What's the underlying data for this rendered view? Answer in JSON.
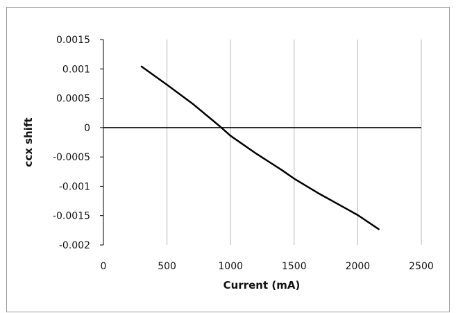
{
  "colors": {
    "gridline": "#b8b8b8",
    "axis": "#000000",
    "series": "#000000",
    "background": "#ffffff"
  },
  "chart_data": {
    "type": "line",
    "title": "",
    "xlabel": "Current (mA)",
    "ylabel": "ccx shift",
    "xlim": [
      0,
      2500
    ],
    "ylim": [
      -0.002,
      0.0015
    ],
    "x_ticks": [
      0,
      500,
      1000,
      1500,
      2000,
      2500
    ],
    "x_tick_labels": [
      "0",
      "500",
      "1000",
      "1500",
      "2000",
      "2500"
    ],
    "y_ticks": [
      0.0015,
      0.001,
      0.0005,
      0,
      -0.0005,
      -0.001,
      -0.0015,
      -0.002
    ],
    "y_tick_labels": [
      "0.0015",
      "0.001",
      "0.0005",
      "0",
      "-0.0005",
      "-0.001",
      "-0.0015",
      "-0.002"
    ],
    "grid": {
      "vertical": true,
      "horizontal": false
    },
    "legend": "none",
    "series": [
      {
        "x": [
          300,
          500,
          700,
          900,
          1000,
          1200,
          1400,
          1500,
          1700,
          1900,
          2000,
          2165
        ],
        "y": [
          0.00104,
          0.00073,
          0.00041,
          5e-05,
          -0.00014,
          -0.00044,
          -0.00072,
          -0.00087,
          -0.00113,
          -0.00137,
          -0.00149,
          -0.00173
        ]
      }
    ]
  }
}
